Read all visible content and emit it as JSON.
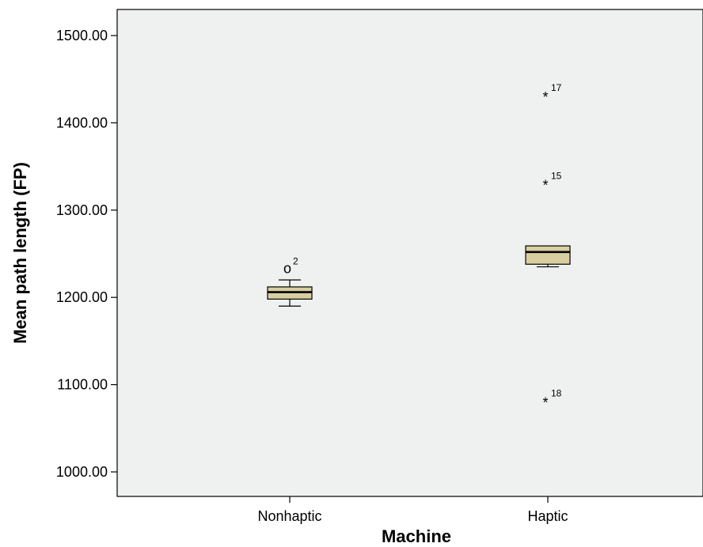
{
  "chart_data": {
    "type": "boxplot",
    "xlabel": "Machine",
    "ylabel": "Mean path length (FP)",
    "ylim": [
      970,
      1530
    ],
    "yticks": [
      1000,
      1100,
      1200,
      1300,
      1400,
      1500
    ],
    "ytick_labels": [
      "1000.00",
      "1100.00",
      "1200.00",
      "1300.00",
      "1400.00",
      "1500.00"
    ],
    "categories": [
      "Nonhaptic",
      "Haptic"
    ],
    "grid": false,
    "colors": {
      "plot_bg": "#eff1f0",
      "box_fill": "#d7cfa0",
      "stroke": "#000000"
    },
    "boxes": [
      {
        "category": "Nonhaptic",
        "whisker_low": 1190,
        "q1": 1198,
        "median": 1206,
        "q3": 1212,
        "whisker_high": 1220,
        "outliers": [
          {
            "value": 1234,
            "marker": "o",
            "id": "2"
          }
        ]
      },
      {
        "category": "Haptic",
        "whisker_low": 1235,
        "q1": 1238,
        "median": 1252,
        "q3": 1259,
        "whisker_high": 1259,
        "outliers": [
          {
            "value": 1433,
            "marker": "*",
            "id": "17"
          },
          {
            "value": 1332,
            "marker": "*",
            "id": "15"
          },
          {
            "value": 1083,
            "marker": "*",
            "id": "18"
          }
        ]
      }
    ]
  }
}
